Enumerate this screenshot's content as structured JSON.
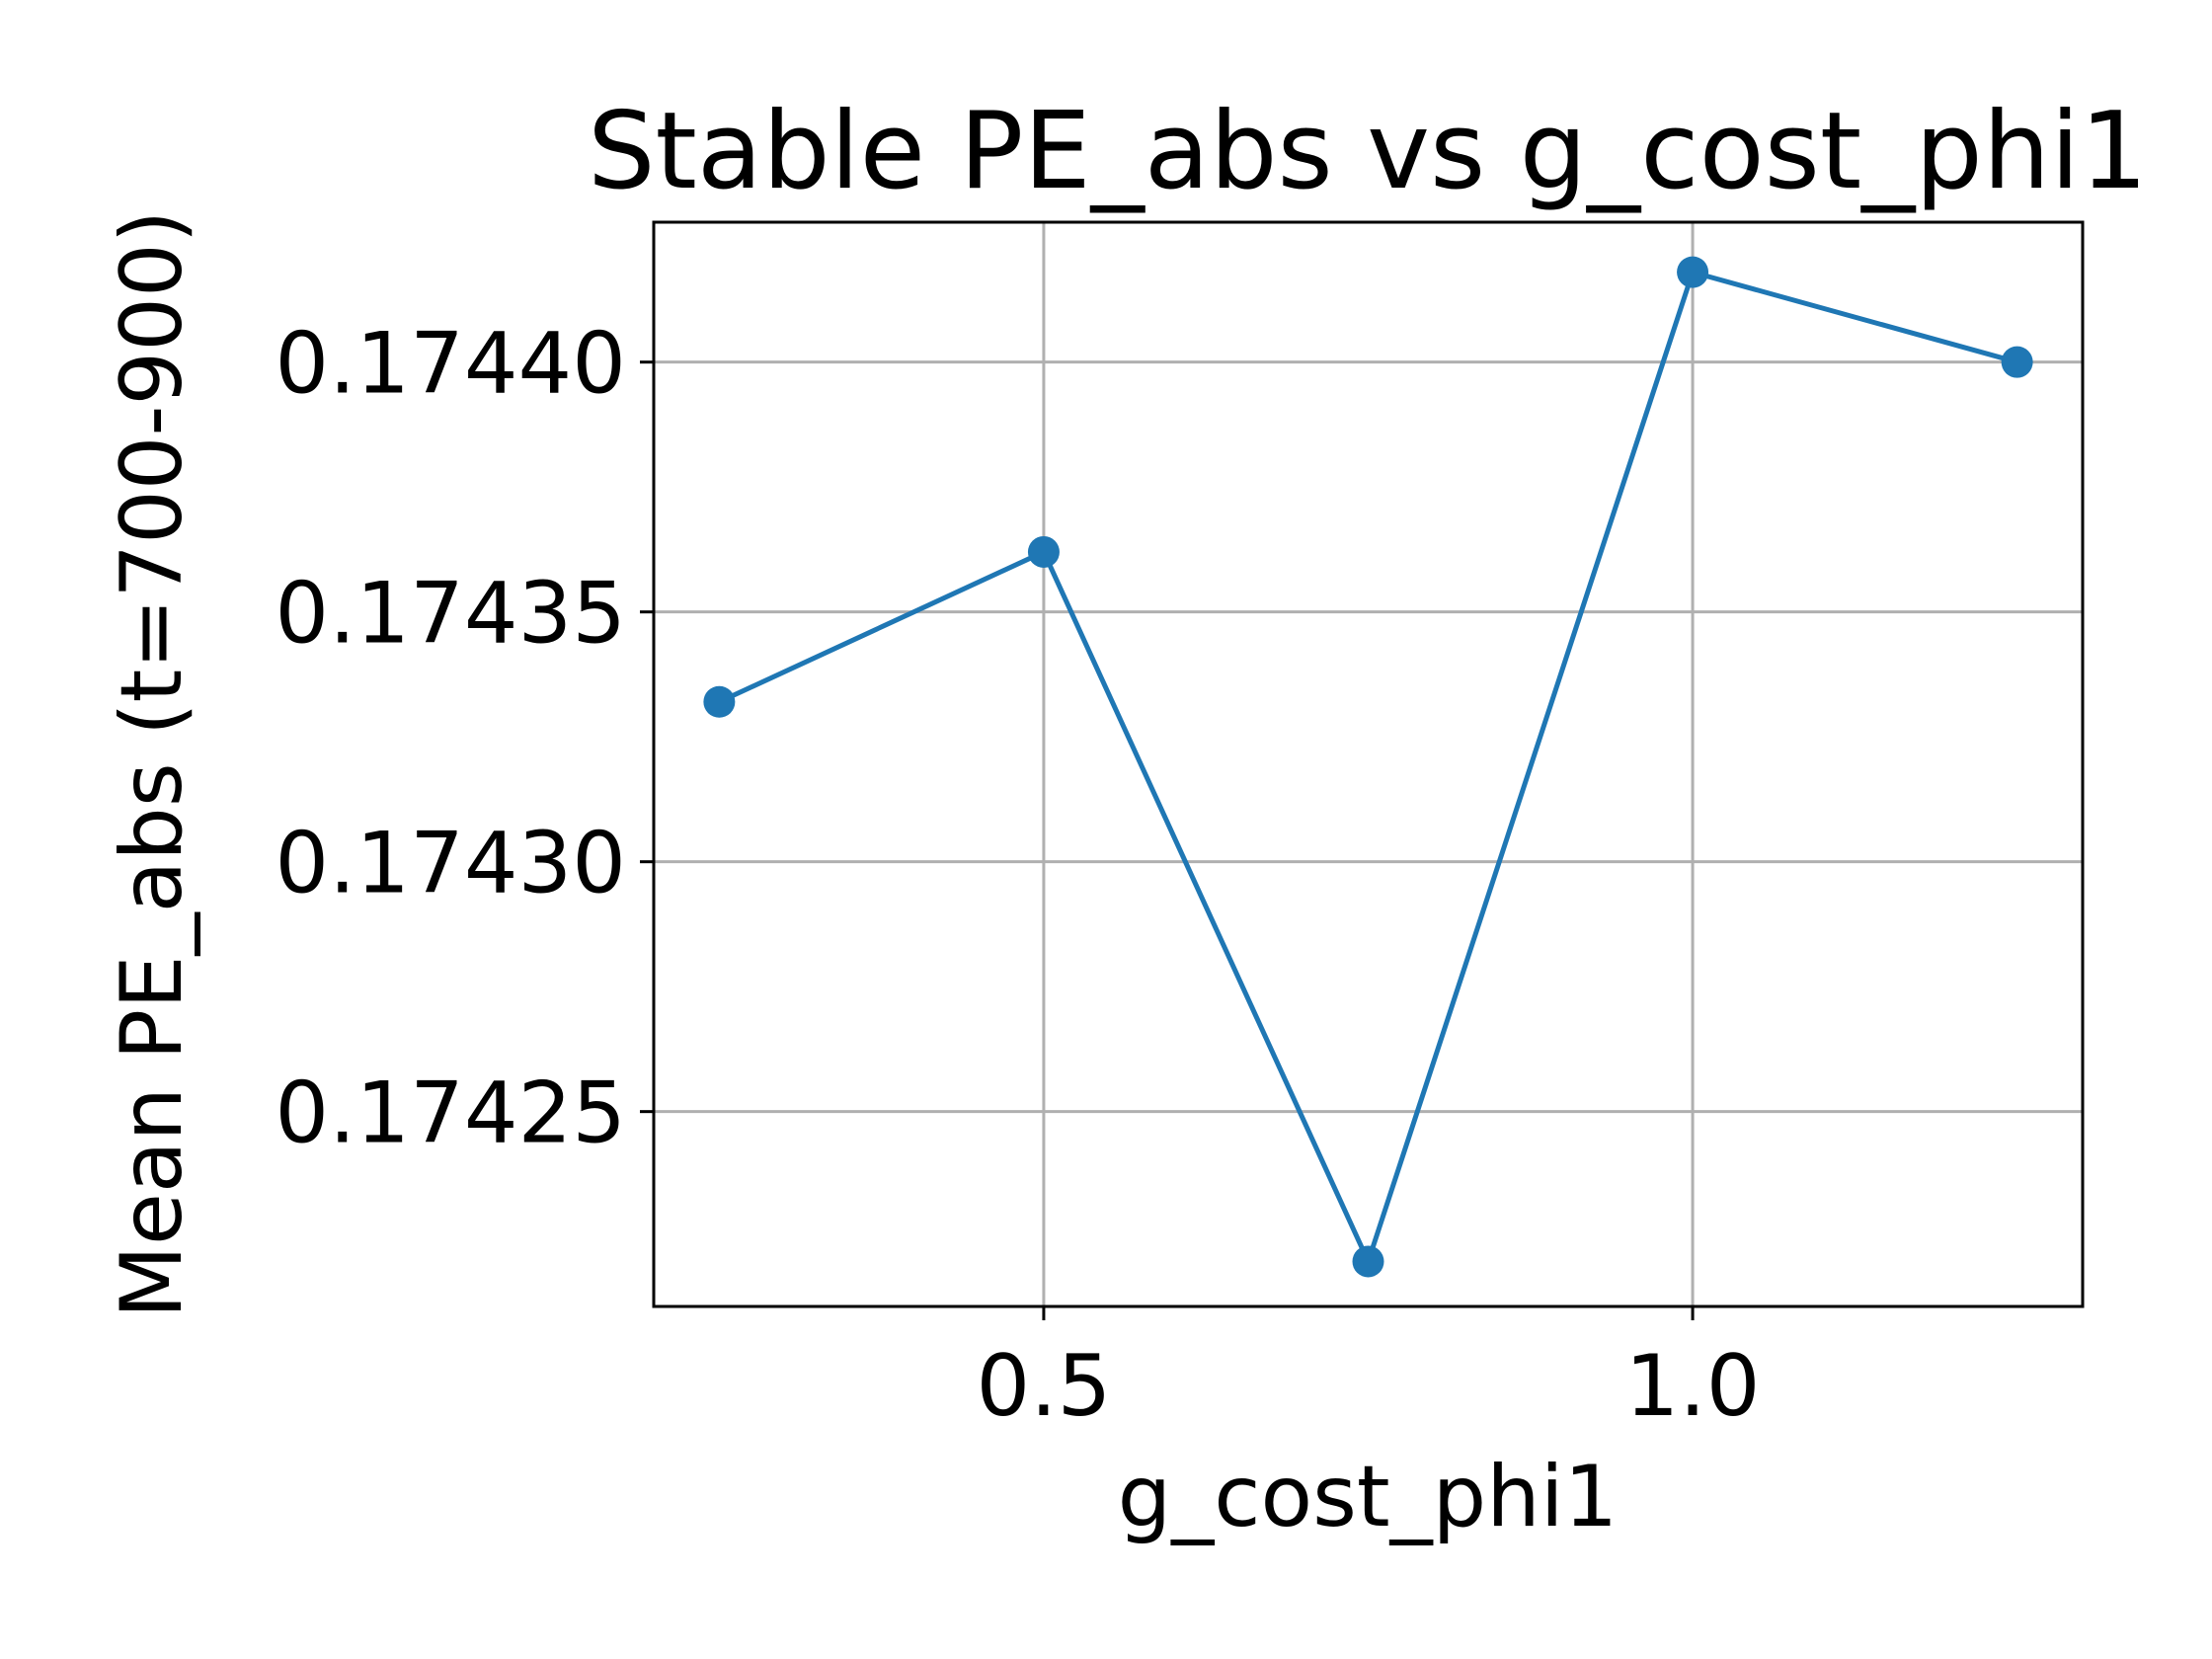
{
  "chart_data": {
    "type": "line",
    "title": "Stable PE_abs vs g_cost_phi1",
    "xlabel": "g_cost_phi1",
    "ylabel": "Mean PE_abs (t=700-900)",
    "x": [
      0.25,
      0.5,
      0.75,
      1.0,
      1.25
    ],
    "series": [
      {
        "values": [
          0.174332,
          0.174362,
          0.17422,
          0.174418,
          0.1744
        ],
        "color": "#1f77b4",
        "marker": "circle"
      }
    ],
    "xticks": [
      0.5,
      1.0
    ],
    "xtick_labels": [
      "0.5",
      "1.0"
    ],
    "yticks": [
      0.17425,
      0.1743,
      0.17435,
      0.1744
    ],
    "ytick_labels": [
      "0.17425",
      "0.17430",
      "0.17435",
      "0.17440"
    ],
    "xlim": [
      0.1995,
      1.3005
    ],
    "ylim": [
      0.174211,
      0.174428
    ],
    "grid": true,
    "legend": false
  }
}
